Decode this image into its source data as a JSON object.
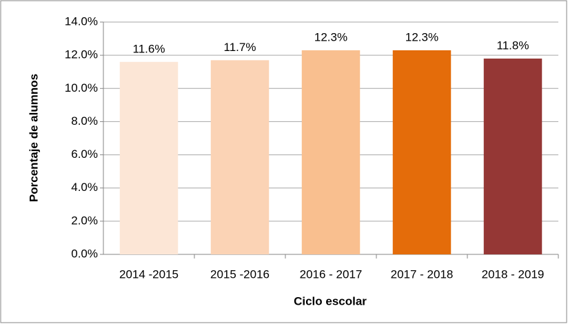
{
  "chart_data": {
    "type": "bar",
    "xlabel": "Ciclo escolar",
    "ylabel": "Porcentaje de alumnos",
    "categories": [
      "2014 -2015",
      "2015 -2016",
      "2016 - 2017",
      "2017 - 2018",
      "2018 - 2019"
    ],
    "values": [
      11.6,
      11.7,
      12.3,
      12.3,
      11.8
    ],
    "value_labels": [
      "11.6%",
      "11.7%",
      "12.3%",
      "12.3%",
      "11.8%"
    ],
    "colors": [
      "#fce6d6",
      "#fbd3b5",
      "#f9bf8f",
      "#e46c0a",
      "#953735"
    ],
    "ylim": [
      0,
      14
    ],
    "yticks": [
      {
        "value": 0,
        "label": "0.0%"
      },
      {
        "value": 2,
        "label": "2.0%"
      },
      {
        "value": 4,
        "label": "4.0%"
      },
      {
        "value": 6,
        "label": "6.0%"
      },
      {
        "value": 8,
        "label": "8.0%"
      },
      {
        "value": 10,
        "label": "10.0%"
      },
      {
        "value": 12,
        "label": "12.0%"
      },
      {
        "value": 14,
        "label": "14.0%"
      }
    ],
    "grid": true
  }
}
